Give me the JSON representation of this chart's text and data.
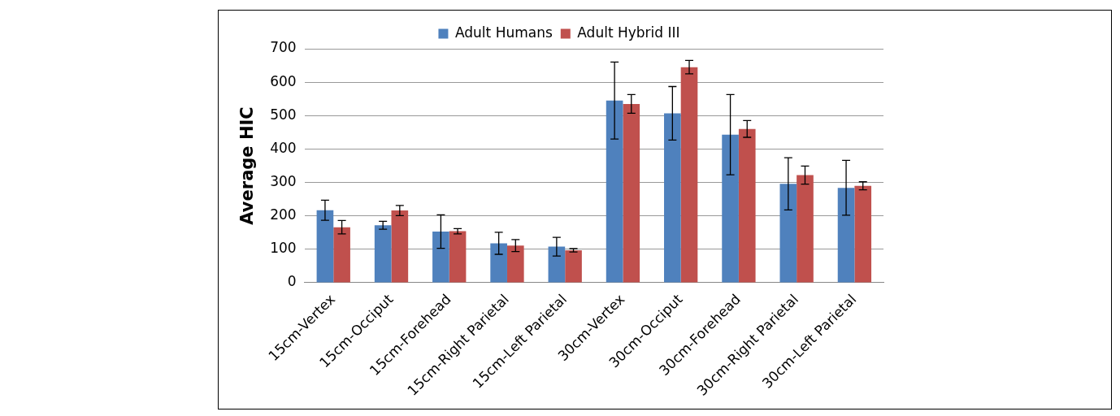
{
  "chart_data": {
    "type": "bar",
    "ylabel": "Average HIC",
    "categories": [
      "15cm-Vertex",
      "15cm-Occiput",
      "15cm-Forehead",
      "15cm-Right Parietal",
      "15cm-Left Parietal",
      "30cm-Vertex",
      "30cm-Occiput",
      "30cm-Forehead",
      "30cm-Right Parietal",
      "30cm-Left Parietal"
    ],
    "series": [
      {
        "name": "Adult Humans",
        "color": "#4f81bd",
        "values": [
          217,
          172,
          153,
          118,
          108,
          545,
          507,
          443,
          296,
          284
        ],
        "errors": [
          30,
          12,
          50,
          33,
          28,
          115,
          80,
          120,
          78,
          82
        ]
      },
      {
        "name": "Adult Hybrid III",
        "color": "#c0504d",
        "values": [
          166,
          216,
          154,
          111,
          97,
          535,
          645,
          460,
          322,
          290
        ],
        "errors": [
          20,
          15,
          8,
          18,
          5,
          28,
          20,
          25,
          27,
          12
        ]
      }
    ],
    "ylim": [
      0,
      700
    ],
    "yticks": [
      0,
      100,
      200,
      300,
      400,
      500,
      600,
      700
    ],
    "grid": "y",
    "legend": "top"
  }
}
